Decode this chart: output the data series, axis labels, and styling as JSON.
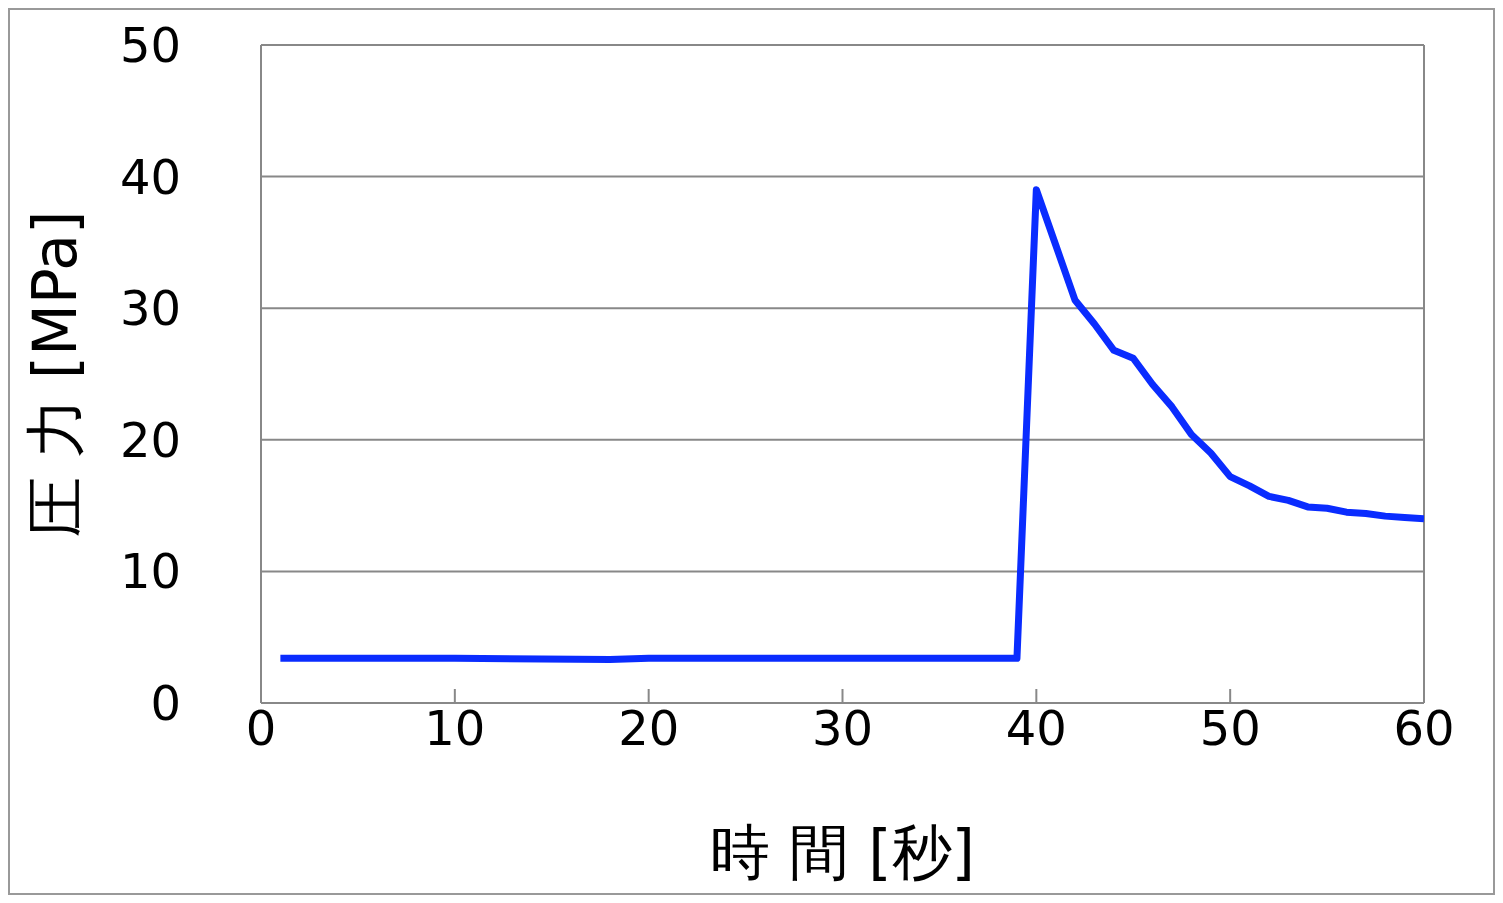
{
  "chart_data": {
    "type": "line",
    "xlabel": "時 間 [秒]",
    "ylabel": "圧 力 [MPa]",
    "x": [
      1,
      10,
      18,
      20,
      30,
      39,
      40,
      41,
      42,
      43,
      44,
      45,
      46,
      47,
      48,
      49,
      50,
      51,
      52,
      53,
      54,
      55,
      56,
      57,
      58,
      59,
      60
    ],
    "series": [
      {
        "color": "#0a2cff",
        "values": [
          3.4,
          3.4,
          3.3,
          3.4,
          3.4,
          3.4,
          39.0,
          34.8,
          30.6,
          28.8,
          26.8,
          26.2,
          24.2,
          22.5,
          20.4,
          19.0,
          17.2,
          16.5,
          15.7,
          15.4,
          14.9,
          14.8,
          14.5,
          14.4,
          14.2,
          14.1,
          14.0
        ]
      }
    ],
    "xlim": [
      0,
      60
    ],
    "xticks": [
      0,
      10,
      20,
      30,
      40,
      50,
      60
    ],
    "ylim": [
      0,
      50
    ],
    "yticks": [
      0,
      10,
      20,
      30,
      40,
      50
    ],
    "grid": "y",
    "marker": "none",
    "line_style": "solid"
  }
}
